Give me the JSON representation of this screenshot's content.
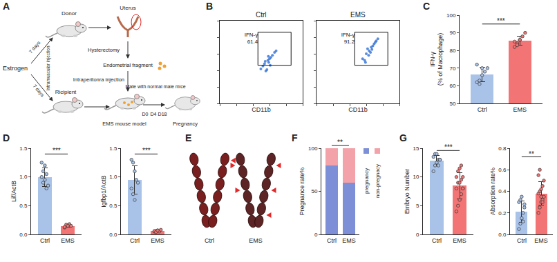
{
  "panel_labels": [
    "A",
    "B",
    "C",
    "D",
    "E",
    "F",
    "G"
  ],
  "diagram": {
    "estrogen": "Estrogen",
    "donor": "Donor",
    "recipient": "Ricipient",
    "days_upper": "7 days",
    "days_lower": "7 days",
    "injection": "Intramuscular injection",
    "uterus": "Uterus",
    "hysterectomy": "Hysterectomy",
    "fragment": "Endometrial fragment",
    "ip_injection": "Intraperitonra injection",
    "mating": "Mate with normal male mice",
    "timepoints": [
      "D0",
      "D4",
      "D18"
    ],
    "model": "EMS mouse model",
    "outcome": "Pregnancy"
  },
  "image": {
    "labels": [
      "Ctrl",
      "EMS"
    ],
    "arrowheads": [
      1,
      5
    ]
  },
  "chart_data": [
    {
      "type": "scatter",
      "title": "Ctrl",
      "xlabel": "CD11b",
      "log": true,
      "tick_labels": false,
      "color": "#2f6fd6",
      "xlim": [
        10,
        1000000
      ],
      "ylim": [
        10,
        1000000
      ],
      "xticks": [
        10,
        100,
        1000,
        10000,
        100000,
        1000000
      ],
      "yticks": [
        10,
        100,
        1000,
        10000,
        100000,
        1000000
      ],
      "x": [
        3000,
        5000,
        8000,
        12000,
        6000,
        9000,
        15000,
        4000,
        7000,
        20000,
        10000,
        5500,
        11000,
        25000,
        8500
      ],
      "y": [
        1200,
        2500,
        4000,
        6000,
        900,
        3000,
        8000,
        1800,
        1100,
        12000,
        5000,
        3500,
        2000,
        15000,
        7000
      ],
      "gate": {
        "x": [
          2000,
          200000
        ],
        "y": [
          2000,
          200000
        ],
        "label": "IFN-γ",
        "value": 61.4
      }
    },
    {
      "type": "scatter",
      "title": "EMS",
      "xlabel": "CD11b",
      "log": true,
      "tick_labels": false,
      "color": "#2f6fd6",
      "xlim": [
        10,
        1000000
      ],
      "ylim": [
        10,
        1000000
      ],
      "xticks": [
        10,
        100,
        1000,
        10000,
        100000,
        1000000
      ],
      "yticks": [
        10,
        100,
        1000,
        10000,
        100000,
        1000000
      ],
      "x": [
        6000,
        10000,
        15000,
        20000,
        30000,
        8000,
        12000,
        25000,
        40000,
        18000,
        9000,
        14000,
        35000,
        22000,
        50000
      ],
      "y": [
        5000,
        10000,
        15000,
        25000,
        40000,
        4000,
        20000,
        30000,
        60000,
        12000,
        3000,
        8000,
        50000,
        18000,
        80000
      ],
      "gate": {
        "x": [
          2000,
          200000
        ],
        "y": [
          2000,
          200000
        ],
        "label": "IFN-γ",
        "value": 91.2
      }
    },
    {
      "type": "bar",
      "categories": [
        "Ctrl",
        "EMS"
      ],
      "values": [
        66.5,
        85.5
      ],
      "error": [
        4.2,
        2.6
      ],
      "points": [
        [
          62,
          63,
          66,
          68,
          70,
          72,
          61,
          70
        ],
        [
          82,
          84,
          86,
          88,
          90,
          85,
          83,
          86
        ]
      ],
      "colors": [
        "#a9c3e8",
        "#f27474"
      ],
      "ylabel": "IFN-γ\n(% of Macrophage)",
      "ylim": [
        50,
        100
      ],
      "yticks": [
        50,
        60,
        70,
        80,
        90,
        100
      ],
      "significance": {
        "text": "***",
        "y": 95
      }
    },
    {
      "type": "bar",
      "categories": [
        "Ctrl",
        "EMS"
      ],
      "values": [
        1.0,
        0.15
      ],
      "error": [
        0.16,
        0.02
      ],
      "points": [
        [
          1.25,
          1.1,
          0.95,
          0.8,
          0.85,
          1.0,
          0.9,
          1.2,
          1.05
        ],
        [
          0.12,
          0.14,
          0.16,
          0.18,
          0.15,
          0.13,
          0.17,
          0.15
        ]
      ],
      "colors": [
        "#a9c3e8",
        "#f27474"
      ],
      "ylabel": "Lif/ActB",
      "ylim": [
        0,
        1.5
      ],
      "yticks": [
        {
          "value": 0,
          "label": "0.0"
        },
        0.5,
        {
          "value": 1,
          "label": "1.0"
        },
        1.5
      ],
      "significance": {
        "text": "***",
        "y": 1.4
      }
    },
    {
      "type": "bar",
      "categories": [
        "Ctrl",
        "EMS"
      ],
      "values": [
        0.95,
        0.06
      ],
      "error": [
        0.25,
        0.01
      ],
      "points": [
        [
          1.3,
          1.25,
          1.1,
          0.95,
          0.9,
          0.8,
          0.7,
          0.6
        ],
        [
          0.05,
          0.06,
          0.07,
          0.05,
          0.08,
          0.06,
          0.04,
          0.07
        ]
      ],
      "colors": [
        "#a9c3e8",
        "#f27474"
      ],
      "ylabel": "Igfbp1/ActB",
      "ylim": [
        0,
        1.5
      ],
      "yticks": [
        {
          "value": 0,
          "label": "0.0"
        },
        0.5,
        {
          "value": 1,
          "label": "1.0"
        },
        1.5
      ],
      "significance": {
        "text": "***",
        "y": 1.4
      }
    },
    {
      "type": "bar",
      "stacked": true,
      "categories": [
        "Ctrl",
        "EMS"
      ],
      "series": [
        {
          "name": "pregnancy",
          "color": "#7d8fd6",
          "values": [
            80,
            60
          ]
        },
        {
          "name": "non-pregnacy",
          "color": "#f2a2a8",
          "values": [
            20,
            40
          ]
        }
      ],
      "ylabel": "Pregnance rate%",
      "ylim": [
        0,
        100
      ],
      "yticks": [
        0,
        50,
        100
      ],
      "significance": {
        "text": "**"
      }
    },
    {
      "type": "bar",
      "categories": [
        "Ctrl",
        "EMS"
      ],
      "values": [
        12.8,
        8.5
      ],
      "error": [
        0.9,
        2.3
      ],
      "points": [
        [
          11,
          12,
          12.5,
          13,
          13,
          13.5,
          14,
          14,
          12,
          13
        ],
        [
          4,
          5,
          6,
          7,
          8,
          8,
          9,
          9,
          9.5,
          10,
          10,
          11,
          11.5,
          12,
          8
        ]
      ],
      "colors": [
        "#a9c3e8",
        "#f27474"
      ],
      "ylabel": "Embryo Number",
      "ylim": [
        0,
        15
      ],
      "yticks": [
        0,
        5,
        10,
        15
      ],
      "significance": {
        "text": "***",
        "y": 14.6
      }
    },
    {
      "type": "bar",
      "categories": [
        "Ctrl",
        "EMS"
      ],
      "values": [
        0.21,
        0.38
      ],
      "error": [
        0.1,
        0.11
      ],
      "points": [
        [
          0.05,
          0.1,
          0.15,
          0.2,
          0.25,
          0.3,
          0.32,
          0.35,
          0.12,
          0.28
        ],
        [
          0.2,
          0.25,
          0.3,
          0.32,
          0.35,
          0.38,
          0.4,
          0.42,
          0.45,
          0.5,
          0.55,
          0.6,
          0.35,
          0.3
        ]
      ],
      "colors": [
        "#a9c3e8",
        "#f27474"
      ],
      "ylabel": "Absorption rate%",
      "ylim": [
        0,
        0.8
      ],
      "yticks": [
        {
          "value": 0,
          "label": "0.0"
        },
        0.2,
        0.4,
        0.6,
        0.8
      ],
      "significance": {
        "text": "**",
        "y": 0.72
      }
    }
  ]
}
